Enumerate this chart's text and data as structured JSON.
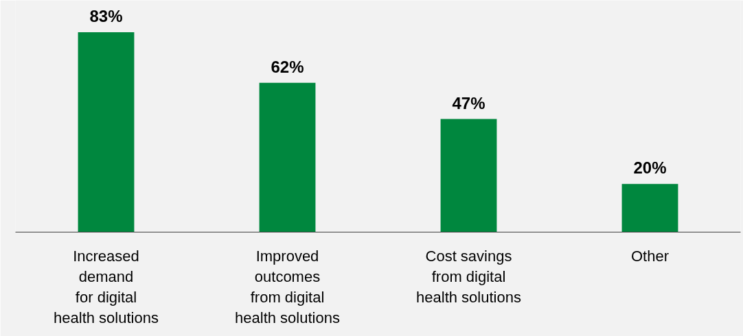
{
  "chart_data": {
    "type": "bar",
    "categories": [
      "Increased\ndemand\nfor digital\nhealth solutions",
      "Improved\noutcomes\nfrom digital\nhealth solutions",
      "Cost savings\nfrom digital\nhealth solutions",
      "Other"
    ],
    "values": [
      83,
      62,
      47,
      20
    ],
    "value_labels": [
      "83%",
      "62%",
      "47%",
      "20%"
    ],
    "color": "#00873e"
  }
}
